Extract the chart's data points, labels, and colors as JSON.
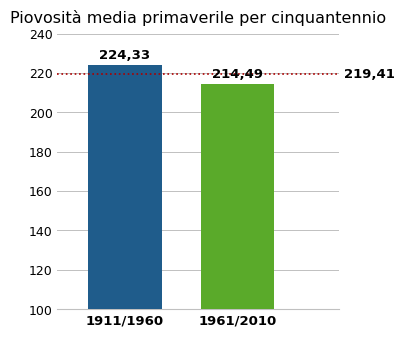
{
  "title": "Piovosità media primaverile per cinquantennio",
  "categories": [
    "1911/1960",
    "1961/2010"
  ],
  "values": [
    224.33,
    214.49
  ],
  "bar_colors": [
    "#1f5c8b",
    "#5aaa2a"
  ],
  "value_labels": [
    "224,33",
    "214,49"
  ],
  "reference_line": 219.41,
  "reference_label": "219,41",
  "ylim": [
    100,
    240
  ],
  "yticks": [
    100,
    120,
    140,
    160,
    180,
    200,
    220,
    240
  ],
  "background_color": "#ffffff",
  "grid_color": "#c0c0c0",
  "title_fontsize": 11.5,
  "label_fontsize": 9.5,
  "tick_fontsize": 9,
  "ref_line_color": "#aa0000",
  "ref_line_style": ":"
}
